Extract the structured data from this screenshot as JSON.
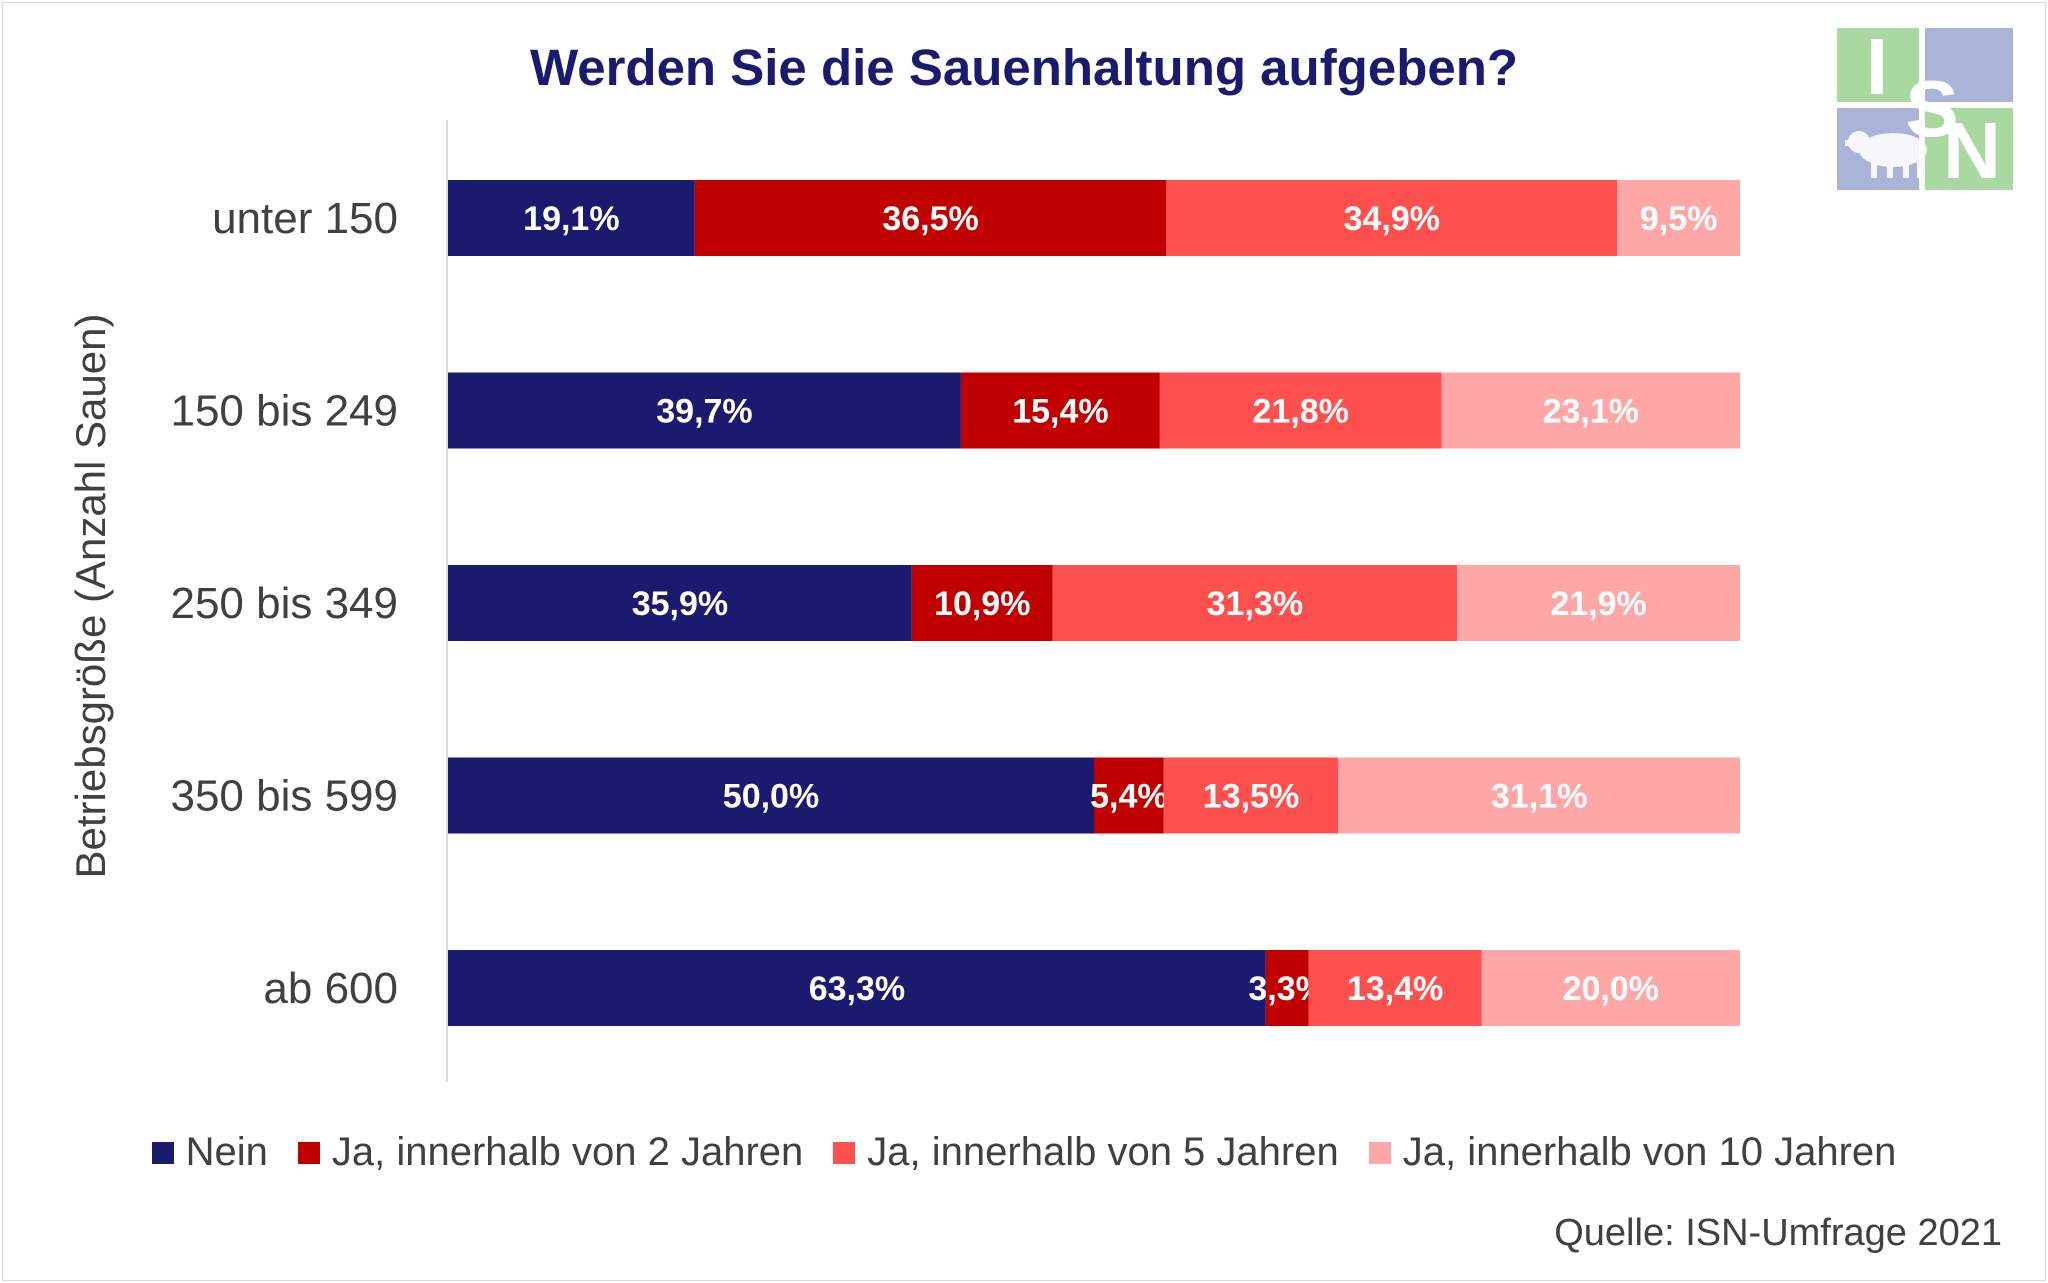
{
  "chart_data": {
    "type": "bar",
    "orientation": "horizontal",
    "stacked": true,
    "title": "Werden Sie die Sauenhaltung aufgeben?",
    "ylabel": "Betriebsgröße (Anzahl Sauen)",
    "categories": [
      "unter 150",
      "150 bis 249",
      "250 bis 349",
      "350 bis 599",
      "ab 600"
    ],
    "series": [
      {
        "name": "Nein",
        "color": "#1b1a6e",
        "values": [
          19.1,
          39.7,
          35.9,
          50.0,
          63.3
        ],
        "labels": [
          "19,1%",
          "39,7%",
          "35,9%",
          "50,0%",
          "63,3%"
        ]
      },
      {
        "name": "Ja, innerhalb von 2 Jahren",
        "color": "#c00000",
        "values": [
          36.5,
          15.4,
          10.9,
          5.4,
          3.3
        ],
        "labels": [
          "36,5%",
          "15,4%",
          "10,9%",
          "5,4%",
          "3,3%"
        ]
      },
      {
        "name": "Ja, innerhalb von 5 Jahren",
        "color": "#ff5050",
        "values": [
          34.9,
          21.8,
          31.3,
          13.5,
          13.4
        ],
        "labels": [
          "34,9%",
          "21,8%",
          "31,3%",
          "13,5%",
          "13,4%"
        ]
      },
      {
        "name": "Ja, innerhalb von 10 Jahren",
        "color": "#ffa7a7",
        "values": [
          9.5,
          23.1,
          21.9,
          31.1,
          20.0
        ],
        "labels": [
          "9,5%",
          "23,1%",
          "21,9%",
          "31,1%",
          "20,0%"
        ]
      }
    ],
    "xlim": [
      0,
      100
    ],
    "grid": false,
    "legend_position": "bottom"
  },
  "source": "Quelle: ISN-Umfrage 2021",
  "logo": {
    "letters": [
      "I",
      "S",
      "N"
    ],
    "icon": "pig-icon"
  }
}
